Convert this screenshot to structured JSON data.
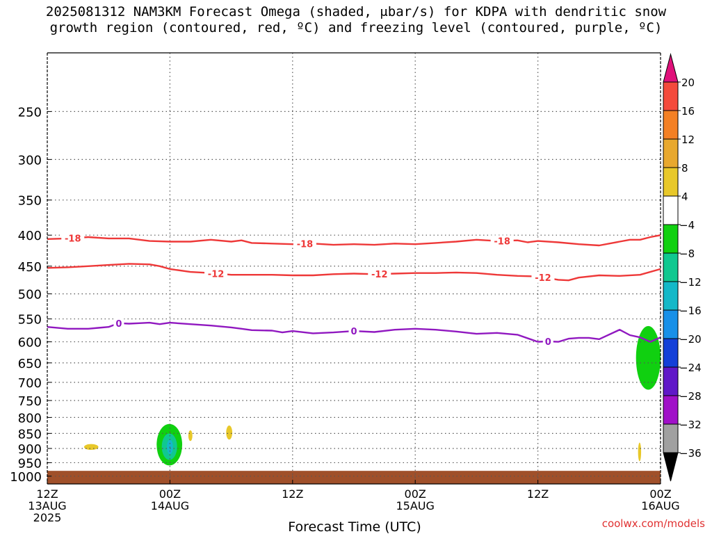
{
  "title": {
    "line1": "2025081312 NAM3KM Forecast Omega (shaded, μbar/s) for KDPA with dendritic snow",
    "line2": "growth region (contoured, red, ºC) and freezing level (contoured, purple, ºC)"
  },
  "credit": "coolwx.com/models",
  "chart_data": {
    "type": "heatmap",
    "title": "2025081312 NAM3KM Forecast Omega (shaded, μbar/s) for KDPA with dendritic snow growth region (contoured, red, ºC) and freezing level (contoured, purple, ºC)",
    "xlabel": "Forecast Time (UTC)",
    "ylabel": "",
    "x_unit": "forecast hour from 2025-08-13 12Z",
    "xlim": [
      0,
      60
    ],
    "x_ticks": [
      {
        "hour": 0,
        "labels": [
          "12Z",
          "13AUG",
          "2025"
        ]
      },
      {
        "hour": 12,
        "labels": [
          "00Z",
          "14AUG"
        ]
      },
      {
        "hour": 24,
        "labels": [
          "12Z"
        ]
      },
      {
        "hour": 36,
        "labels": [
          "00Z",
          "15AUG"
        ]
      },
      {
        "hour": 48,
        "labels": [
          "12Z"
        ]
      },
      {
        "hour": 60,
        "labels": [
          "00Z",
          "16AUG"
        ]
      }
    ],
    "y_scale": "log-pressure (inverted)",
    "ylim": [
      1030,
      200
    ],
    "y_ticks": [
      250,
      300,
      350,
      400,
      450,
      500,
      550,
      600,
      650,
      700,
      750,
      800,
      850,
      900,
      950,
      1000
    ],
    "grid": true,
    "colorbar": {
      "unit": "μbar/s",
      "labels": [
        20,
        16,
        12,
        8,
        4,
        -4,
        -8,
        -12,
        -16,
        -20,
        -24,
        -28,
        -32,
        -36
      ],
      "bins": [
        {
          "range": "above 20",
          "color": "#e0107a"
        },
        {
          "range": "16 to 20",
          "color": "#f44a3c"
        },
        {
          "range": "12 to 16",
          "color": "#f48024"
        },
        {
          "range": "8 to 12",
          "color": "#e8a82e"
        },
        {
          "range": "4 to 8",
          "color": "#e8c82a"
        },
        {
          "range": "-4 to 4",
          "color": "#ffffff"
        },
        {
          "range": "-8 to -4",
          "color": "#10d010"
        },
        {
          "range": "-12 to -8",
          "color": "#10c890"
        },
        {
          "range": "-16 to -12",
          "color": "#14b8c8"
        },
        {
          "range": "-20 to -16",
          "color": "#1890e8"
        },
        {
          "range": "-24 to -20",
          "color": "#1440d8"
        },
        {
          "range": "-28 to -24",
          "color": "#6018c8"
        },
        {
          "range": "-32 to -28",
          "color": "#a010c8"
        },
        {
          "range": "-36 to -32",
          "color": "#a0a0a0"
        },
        {
          "range": "below -36",
          "color": "#000000"
        }
      ]
    },
    "contours": [
      {
        "level": "-18",
        "color": "#ee3838",
        "points": [
          [
            0,
            406
          ],
          [
            2,
            405
          ],
          [
            4,
            403
          ],
          [
            6,
            405
          ],
          [
            8,
            405
          ],
          [
            10,
            409
          ],
          [
            12,
            410
          ],
          [
            14,
            410
          ],
          [
            16,
            407
          ],
          [
            18,
            410
          ],
          [
            19,
            408
          ],
          [
            20,
            412
          ],
          [
            22,
            413
          ],
          [
            24,
            414
          ],
          [
            26,
            413
          ],
          [
            28,
            415
          ],
          [
            30,
            414
          ],
          [
            32,
            415
          ],
          [
            34,
            413
          ],
          [
            36,
            414
          ],
          [
            38,
            412
          ],
          [
            40,
            410
          ],
          [
            42,
            407
          ],
          [
            44,
            409
          ],
          [
            46,
            408
          ],
          [
            47,
            411
          ],
          [
            48,
            409
          ],
          [
            50,
            411
          ],
          [
            52,
            414
          ],
          [
            54,
            416
          ],
          [
            56,
            410
          ],
          [
            57,
            407
          ],
          [
            58,
            407
          ],
          [
            59,
            403
          ],
          [
            60,
            400
          ]
        ],
        "label_hours": [
          2.5,
          25.2,
          44.5
        ]
      },
      {
        "level": "-12",
        "color": "#ee3838",
        "points": [
          [
            0,
            453
          ],
          [
            2,
            452
          ],
          [
            4,
            450
          ],
          [
            6,
            448
          ],
          [
            8,
            446
          ],
          [
            10,
            447
          ],
          [
            11,
            450
          ],
          [
            12,
            455
          ],
          [
            14,
            460
          ],
          [
            16,
            462
          ],
          [
            18,
            465
          ],
          [
            20,
            465
          ],
          [
            22,
            465
          ],
          [
            24,
            466
          ],
          [
            26,
            466
          ],
          [
            28,
            464
          ],
          [
            30,
            463
          ],
          [
            32,
            464
          ],
          [
            34,
            463
          ],
          [
            36,
            462
          ],
          [
            38,
            462
          ],
          [
            40,
            461
          ],
          [
            42,
            462
          ],
          [
            44,
            465
          ],
          [
            46,
            467
          ],
          [
            48,
            468
          ],
          [
            50,
            474
          ],
          [
            51,
            475
          ],
          [
            52,
            470
          ],
          [
            54,
            466
          ],
          [
            56,
            467
          ],
          [
            58,
            465
          ],
          [
            60,
            455
          ]
        ],
        "label_hours": [
          16.5,
          32.5,
          48.5
        ],
        "label_text": "-12"
      },
      {
        "level": "0",
        "color": "#9018c0",
        "points": [
          [
            0,
            567
          ],
          [
            2,
            571
          ],
          [
            4,
            571
          ],
          [
            5,
            569
          ],
          [
            6,
            567
          ],
          [
            7,
            559
          ],
          [
            8,
            560
          ],
          [
            9,
            559
          ],
          [
            10,
            558
          ],
          [
            11,
            561
          ],
          [
            12,
            558
          ],
          [
            14,
            561
          ],
          [
            16,
            564
          ],
          [
            18,
            568
          ],
          [
            19,
            571
          ],
          [
            20,
            574
          ],
          [
            22,
            575
          ],
          [
            23,
            579
          ],
          [
            24,
            576
          ],
          [
            26,
            581
          ],
          [
            28,
            579
          ],
          [
            30,
            576
          ],
          [
            32,
            578
          ],
          [
            34,
            573
          ],
          [
            36,
            571
          ],
          [
            38,
            573
          ],
          [
            40,
            577
          ],
          [
            42,
            582
          ],
          [
            44,
            580
          ],
          [
            46,
            584
          ],
          [
            48,
            600
          ],
          [
            49,
            599
          ],
          [
            50,
            600
          ],
          [
            51,
            593
          ],
          [
            52,
            591
          ],
          [
            53,
            591
          ],
          [
            54,
            594
          ],
          [
            56,
            573
          ],
          [
            57,
            585
          ],
          [
            58,
            590
          ],
          [
            59,
            600
          ],
          [
            60,
            590
          ]
        ],
        "label_hours": [
          7,
          30,
          49
        ]
      }
    ],
    "shaded_regions": [
      {
        "range": "-8 to -4",
        "color": "#10d010",
        "hours": [
          10.7,
          13.2
        ],
        "pressure": [
          820,
          960
        ]
      },
      {
        "range": "-12 to -8",
        "color": "#10c890",
        "hours": [
          11.2,
          12.7
        ],
        "pressure": [
          850,
          940
        ]
      },
      {
        "range": "-16 to -12",
        "color": "#14b8c8",
        "hours": [
          11.7,
          12.3
        ],
        "pressure": [
          870,
          920
        ]
      },
      {
        "range": "4 to 8",
        "color": "#e8c82a",
        "hours": [
          3.6,
          5.0
        ],
        "pressure": [
          885,
          905
        ]
      },
      {
        "range": "4 to 8",
        "color": "#e8c82a",
        "hours": [
          13.8,
          14.2
        ],
        "pressure": [
          840,
          875
        ]
      },
      {
        "range": "4 to 8",
        "color": "#e8c82a",
        "hours": [
          17.5,
          18.1
        ],
        "pressure": [
          825,
          870
        ]
      },
      {
        "range": "4 to 8",
        "color": "#e8c82a",
        "hours": [
          57.8,
          58.1
        ],
        "pressure": [
          880,
          945
        ]
      },
      {
        "range": "-8 to -4",
        "color": "#10d010",
        "hours": [
          57.6,
          60.0
        ],
        "pressure": [
          565,
          720
        ]
      }
    ],
    "terrain": {
      "color": "#a0502a",
      "pressure_top": 980
    }
  }
}
